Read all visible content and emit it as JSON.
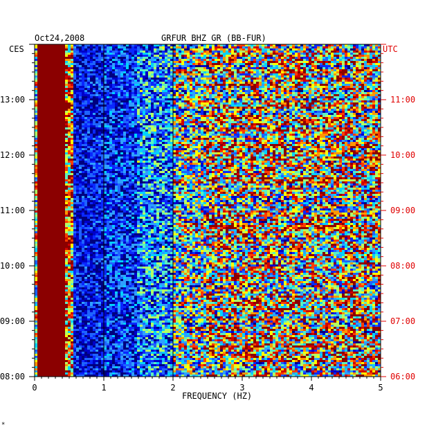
{
  "header": {
    "date": "Oct24,2008",
    "station": "GRFUR BHZ GR (BB-FUR)",
    "left_zone": "CES",
    "right_zone": "UTC"
  },
  "colors": {
    "left_axis": "#000000",
    "right_axis": "#e00000",
    "palette": [
      "#00007f",
      "#0000c8",
      "#0a28ff",
      "#1e64ff",
      "#2fa0ff",
      "#00d2ff",
      "#5cf0c0",
      "#b4ff64",
      "#ffff00",
      "#ff9600",
      "#ff3c00",
      "#d20000",
      "#8b0000"
    ]
  },
  "chart_data": {
    "type": "heatmap",
    "title": "GRFUR BHZ GR (BB-FUR)",
    "date": "Oct24,2008",
    "xlabel": "FREQUENCY (HZ)",
    "xlim": [
      0,
      5
    ],
    "x_ticks": [
      "0",
      "1",
      "2",
      "3",
      "4",
      "5"
    ],
    "y_left_label": "CES",
    "y_right_label": "UTC",
    "y_left_ticks": [
      "08:00",
      "09:00",
      "10:00",
      "11:00",
      "12:00",
      "13:00"
    ],
    "y_right_ticks": [
      "06:00",
      "07:00",
      "08:00",
      "09:00",
      "10:00",
      "11:00"
    ],
    "time_span_hours_ces": [
      8.0,
      14.0
    ],
    "gridlines_x_hz": [
      1,
      2
    ],
    "description_bands": [
      {
        "freq_range_hz": [
          0.05,
          0.45
        ],
        "level": "max"
      },
      {
        "freq_range_hz": [
          0.55,
          1.9
        ],
        "level": "low"
      },
      {
        "freq_range_hz": [
          1.9,
          5.0
        ],
        "level": "mixed-high"
      }
    ]
  },
  "footer": {
    "mark": "*"
  }
}
